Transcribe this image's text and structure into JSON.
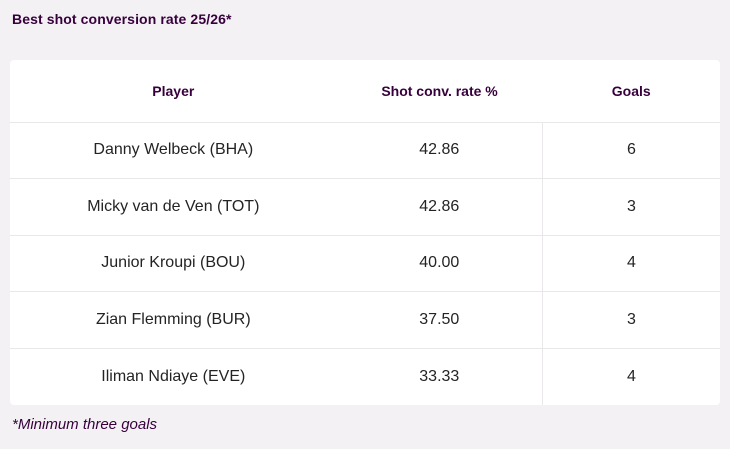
{
  "page": {
    "title": "Best shot conversion rate 25/26*",
    "footnote": "*Minimum three goals"
  },
  "table": {
    "headers": [
      "Player",
      "Shot conv. rate %",
      "Goals"
    ],
    "rows": [
      {
        "player": "Danny Welbeck (BHA)",
        "rate": "42.86",
        "goals": "6"
      },
      {
        "player": "Micky van de Ven (TOT)",
        "rate": "42.86",
        "goals": "3"
      },
      {
        "player": "Junior Kroupi (BOU)",
        "rate": "40.00",
        "goals": "4"
      },
      {
        "player": "Zian Flemming (BUR)",
        "rate": "37.50",
        "goals": "3"
      },
      {
        "player": "Iliman Ndiaye (EVE)",
        "rate": "33.33",
        "goals": "4"
      }
    ]
  },
  "chart_data": {
    "type": "table",
    "title": "Best shot conversion rate 25/26*",
    "columns": [
      "Player",
      "Shot conv. rate %",
      "Goals"
    ],
    "rows": [
      [
        "Danny Welbeck (BHA)",
        42.86,
        6
      ],
      [
        "Micky van de Ven (TOT)",
        42.86,
        3
      ],
      [
        "Junior Kroupi (BOU)",
        40.0,
        4
      ],
      [
        "Zian Flemming (BUR)",
        37.5,
        3
      ],
      [
        "Iliman Ndiaye (EVE)",
        33.33,
        4
      ]
    ],
    "footnote": "*Minimum three goals"
  },
  "colors": {
    "accent_purple": "#37003c",
    "background": "#f3f1f4",
    "card": "#ffffff",
    "divider": "#e9e7ea",
    "text": "#242424"
  }
}
